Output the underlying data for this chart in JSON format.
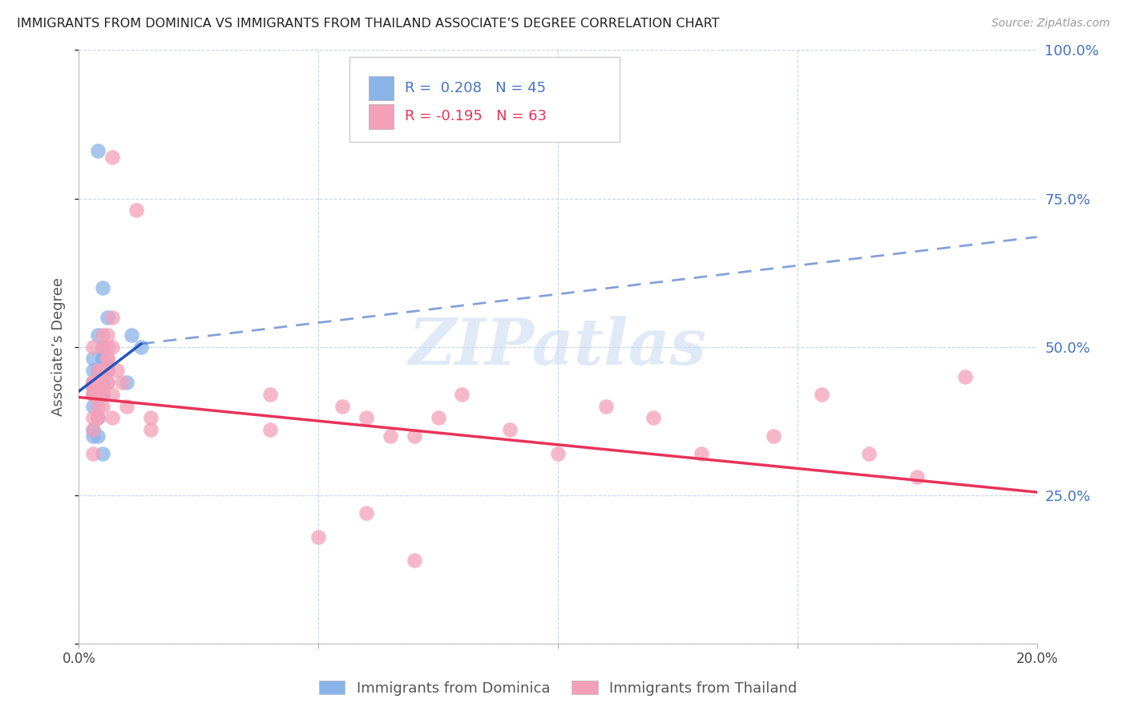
{
  "title": "IMMIGRANTS FROM DOMINICA VS IMMIGRANTS FROM THAILAND ASSOCIATE’S DEGREE CORRELATION CHART",
  "source": "Source: ZipAtlas.com",
  "ylabel": "Associate’s Degree",
  "xmin": 0.0,
  "xmax": 0.2,
  "ymin": 0.0,
  "ymax": 1.0,
  "yticks": [
    0.0,
    0.25,
    0.5,
    0.75,
    1.0
  ],
  "ytick_labels": [
    "",
    "25.0%",
    "50.0%",
    "75.0%",
    "100.0%"
  ],
  "xticks": [
    0.0,
    0.05,
    0.1,
    0.15,
    0.2
  ],
  "xtick_labels": [
    "0.0%",
    "",
    "",
    "",
    "20.0%"
  ],
  "blue_R": 0.208,
  "blue_N": 45,
  "pink_R": -0.195,
  "pink_N": 63,
  "blue_color": "#8ab4e8",
  "pink_color": "#f4a0b8",
  "blue_line_color": "#2255bb",
  "pink_line_color": "#e8335a",
  "right_axis_color": "#4472c4",
  "background_color": "#ffffff",
  "grid_color": "#c8d4e8",
  "watermark": "ZIPatlas",
  "watermark_color": "#ccdcf0",
  "legend_label_blue": "Immigrants from Dominica",
  "legend_label_pink": "Immigrants from Thailand",
  "blue_line_x0": 0.0,
  "blue_line_y0": 0.425,
  "blue_line_x1": 0.013,
  "blue_line_y1": 0.505,
  "blue_line_dash_x1": 0.2,
  "blue_line_dash_y1": 0.685,
  "pink_line_x0": 0.0,
  "pink_line_y0": 0.415,
  "pink_line_x1": 0.2,
  "pink_line_y1": 0.255,
  "blue_x": [
    0.005,
    0.004,
    0.003,
    0.004,
    0.005,
    0.006,
    0.003,
    0.005,
    0.004,
    0.005,
    0.003,
    0.006,
    0.004,
    0.005,
    0.004,
    0.003,
    0.004,
    0.005,
    0.003,
    0.004,
    0.005,
    0.004,
    0.003,
    0.005,
    0.004,
    0.003,
    0.004,
    0.003,
    0.005,
    0.004,
    0.005,
    0.003,
    0.006,
    0.004,
    0.005,
    0.013,
    0.01,
    0.011,
    0.005,
    0.004,
    0.003,
    0.005,
    0.004,
    0.003,
    0.004
  ],
  "blue_y": [
    0.5,
    0.52,
    0.48,
    0.44,
    0.42,
    0.55,
    0.46,
    0.5,
    0.44,
    0.48,
    0.43,
    0.47,
    0.45,
    0.5,
    0.83,
    0.42,
    0.44,
    0.48,
    0.44,
    0.46,
    0.44,
    0.46,
    0.44,
    0.48,
    0.42,
    0.44,
    0.42,
    0.44,
    0.46,
    0.42,
    0.44,
    0.35,
    0.46,
    0.42,
    0.44,
    0.5,
    0.44,
    0.52,
    0.6,
    0.44,
    0.4,
    0.32,
    0.35,
    0.36,
    0.38
  ],
  "pink_x": [
    0.003,
    0.004,
    0.005,
    0.006,
    0.003,
    0.007,
    0.004,
    0.005,
    0.003,
    0.006,
    0.003,
    0.005,
    0.004,
    0.006,
    0.007,
    0.003,
    0.005,
    0.004,
    0.006,
    0.003,
    0.006,
    0.004,
    0.005,
    0.003,
    0.007,
    0.008,
    0.003,
    0.006,
    0.004,
    0.005,
    0.009,
    0.003,
    0.006,
    0.007,
    0.004,
    0.005,
    0.01,
    0.012,
    0.003,
    0.007,
    0.015,
    0.015,
    0.04,
    0.04,
    0.055,
    0.06,
    0.065,
    0.07,
    0.075,
    0.08,
    0.09,
    0.1,
    0.11,
    0.12,
    0.13,
    0.145,
    0.155,
    0.165,
    0.175,
    0.185,
    0.05,
    0.06,
    0.07
  ],
  "pink_y": [
    0.5,
    0.44,
    0.52,
    0.48,
    0.44,
    0.55,
    0.46,
    0.5,
    0.42,
    0.48,
    0.44,
    0.46,
    0.42,
    0.5,
    0.82,
    0.44,
    0.46,
    0.4,
    0.52,
    0.42,
    0.46,
    0.44,
    0.4,
    0.38,
    0.5,
    0.46,
    0.43,
    0.44,
    0.38,
    0.42,
    0.44,
    0.36,
    0.44,
    0.38,
    0.38,
    0.42,
    0.4,
    0.73,
    0.32,
    0.42,
    0.36,
    0.38,
    0.42,
    0.36,
    0.4,
    0.38,
    0.35,
    0.35,
    0.38,
    0.42,
    0.36,
    0.32,
    0.4,
    0.38,
    0.32,
    0.35,
    0.42,
    0.32,
    0.28,
    0.45,
    0.18,
    0.22,
    0.14
  ]
}
